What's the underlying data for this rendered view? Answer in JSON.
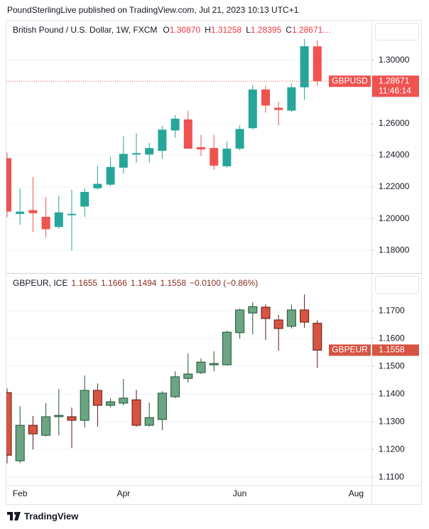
{
  "header": "PoundSterlingLive published on TradingView.com, Jul 21, 2023 10:13 UTC+1",
  "footer": "TradingView",
  "x_axis": {
    "categories": [
      null,
      "Feb",
      null,
      null,
      null,
      null,
      null,
      null,
      null,
      "Apr",
      null,
      null,
      null,
      null,
      null,
      null,
      null,
      null,
      "Jun",
      null,
      null,
      null,
      null,
      null,
      null,
      null,
      null,
      "Aug"
    ]
  },
  "chart_data": [
    {
      "type": "candlestick",
      "title": "British Pound / U.S. Dollar, 1W, FXCM",
      "ohlc_labels": [
        "O",
        "H",
        "L",
        "C"
      ],
      "ohlc_values": [
        "1.30870",
        "1.31258",
        "1.28395",
        "1.28671…"
      ],
      "open": [
        1.2382,
        1.203,
        1.2054,
        1.2012,
        1.1948,
        1.2022,
        1.2077,
        1.2192,
        1.2215,
        1.2322,
        1.2405,
        1.2405,
        1.2428,
        1.2557,
        1.2626,
        1.2451,
        1.2446,
        1.2331,
        1.2442,
        1.2571,
        1.2815,
        1.27,
        1.2682,
        1.2829,
        1.3087
      ],
      "high": [
        1.2418,
        1.2191,
        1.2262,
        1.2137,
        1.2146,
        1.2183,
        1.2192,
        1.2335,
        1.2391,
        1.252,
        1.2538,
        1.2478,
        1.2585,
        1.2654,
        1.2682,
        1.2529,
        1.2529,
        1.2488,
        1.2589,
        1.2843,
        1.2838,
        1.2737,
        1.2852,
        1.3134,
        1.31258
      ],
      "low": [
        1.201,
        1.1962,
        1.1915,
        1.1883,
        1.1939,
        1.18,
        1.2012,
        1.2183,
        1.2206,
        1.2285,
        1.2354,
        1.2354,
        1.2377,
        1.2511,
        1.2442,
        1.2395,
        1.2308,
        1.2322,
        1.2432,
        1.2562,
        1.2668,
        1.2589,
        1.2672,
        1.2751,
        1.28395
      ],
      "close": [
        1.2045,
        1.2045,
        1.2035,
        1.1934,
        1.204,
        1.2031,
        1.2169,
        1.222,
        1.2326,
        1.2409,
        1.2414,
        1.2446,
        1.2562,
        1.2631,
        1.2442,
        1.2437,
        1.2335,
        1.2442,
        1.2566,
        1.2815,
        1.2714,
        1.2686,
        1.2829,
        1.3088,
        1.28671
      ],
      "up_color": "#26a69a",
      "down_color": "#ef5350",
      "legend_value_color": "#f23645",
      "ylim": [
        1.1662,
        1.3245
      ],
      "yticks": [
        {
          "value": 1.18,
          "label": "1.18000"
        },
        {
          "value": 1.2,
          "label": "1.20000"
        },
        {
          "value": 1.22,
          "label": "1.22000"
        },
        {
          "value": 1.24,
          "label": "1.24000"
        },
        {
          "value": 1.26,
          "label": "1.26000"
        },
        {
          "value": 1.3,
          "label": "1.30000"
        }
      ],
      "grid": true,
      "price_line": true,
      "price_tag": {
        "symbol": "GBPUSD",
        "price": "1.28671",
        "countdown": "11:46:14"
      }
    },
    {
      "type": "candlestick",
      "title": "GBPEUR, ICE",
      "ohlc_values": [
        "1.1655",
        "1.1666",
        "1.1494",
        "1.1558"
      ],
      "change": "−0.0100 (−0.86%)",
      "open": [
        1.1405,
        1.1159,
        1.1287,
        1.1251,
        1.1318,
        1.1318,
        1.1305,
        1.1413,
        1.1359,
        1.1367,
        1.1379,
        1.1287,
        1.1308,
        1.139,
        1.1456,
        1.1477,
        1.1505,
        1.1505,
        1.1621,
        1.1692,
        1.1713,
        1.1667,
        1.1644,
        1.1703,
        1.1655
      ],
      "high": [
        1.142,
        1.1356,
        1.1321,
        1.1367,
        1.1418,
        1.1351,
        1.1467,
        1.1438,
        1.1385,
        1.1454,
        1.1415,
        1.1369,
        1.141,
        1.1482,
        1.1546,
        1.1528,
        1.1554,
        1.1628,
        1.1708,
        1.1731,
        1.1723,
        1.1685,
        1.1723,
        1.1759,
        1.1666
      ],
      "low": [
        1.115,
        1.1151,
        1.12,
        1.1246,
        1.1251,
        1.1205,
        1.1279,
        1.1282,
        1.1351,
        1.1359,
        1.1282,
        1.1282,
        1.1269,
        1.1385,
        1.1441,
        1.1472,
        1.1482,
        1.1503,
        1.16,
        1.1615,
        1.1595,
        1.1556,
        1.1636,
        1.1638,
        1.1494
      ],
      "close": [
        1.1179,
        1.1287,
        1.1256,
        1.1318,
        1.1323,
        1.1305,
        1.1413,
        1.1359,
        1.1372,
        1.1385,
        1.1287,
        1.1315,
        1.1403,
        1.1462,
        1.1472,
        1.1515,
        1.151,
        1.1623,
        1.1703,
        1.1715,
        1.1672,
        1.1636,
        1.1703,
        1.1659,
        1.1558
      ],
      "up_color": "#6ba583",
      "down_color": "#d75442",
      "up_border": "#225437",
      "down_border": "#5b1a13",
      "legend_value_color": "#8b2c20",
      "ylim": [
        1.1072,
        1.1831
      ],
      "yticks": [
        {
          "value": 1.11,
          "label": "1.1100"
        },
        {
          "value": 1.12,
          "label": "1.1200"
        },
        {
          "value": 1.13,
          "label": "1.1300"
        },
        {
          "value": 1.14,
          "label": "1.1400"
        },
        {
          "value": 1.15,
          "label": "1.1500"
        },
        {
          "value": 1.16,
          "label": "1.1600"
        },
        {
          "value": 1.17,
          "label": "1.1700"
        }
      ],
      "grid": true,
      "price_tag": {
        "symbol": "GBPEUR",
        "price": "1.1558"
      }
    }
  ]
}
